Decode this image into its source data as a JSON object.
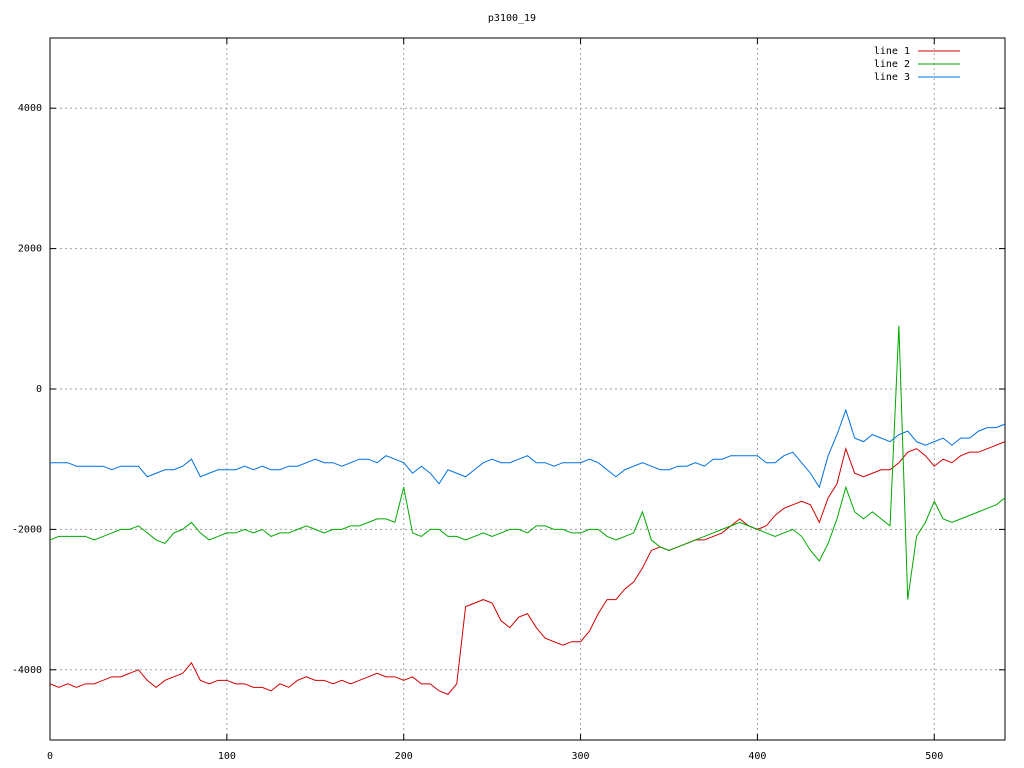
{
  "chart_data": {
    "type": "line",
    "title": "p3100_19",
    "x": [
      0,
      5,
      10,
      15,
      20,
      25,
      30,
      35,
      40,
      45,
      50,
      55,
      60,
      65,
      70,
      75,
      80,
      85,
      90,
      95,
      100,
      105,
      110,
      115,
      120,
      125,
      130,
      135,
      140,
      145,
      150,
      155,
      160,
      165,
      170,
      175,
      180,
      185,
      190,
      195,
      200,
      205,
      210,
      215,
      220,
      225,
      230,
      235,
      240,
      245,
      250,
      255,
      260,
      265,
      270,
      275,
      280,
      285,
      290,
      295,
      300,
      305,
      310,
      315,
      320,
      325,
      330,
      335,
      340,
      345,
      350,
      355,
      360,
      365,
      370,
      375,
      380,
      385,
      390,
      395,
      400,
      405,
      410,
      415,
      420,
      425,
      430,
      435,
      440,
      445,
      450,
      455,
      460,
      465,
      470,
      475,
      480,
      485,
      490,
      495,
      500,
      505,
      510,
      515,
      520,
      525,
      530,
      535,
      540
    ],
    "series": [
      {
        "name": "line 1",
        "color": "#d00000",
        "values": [
          -4200,
          -4250,
          -4200,
          -4250,
          -4200,
          -4200,
          -4150,
          -4100,
          -4100,
          -4050,
          -4000,
          -4150,
          -4250,
          -4150,
          -4100,
          -4050,
          -3900,
          -4150,
          -4200,
          -4150,
          -4150,
          -4200,
          -4200,
          -4250,
          -4250,
          -4300,
          -4200,
          -4250,
          -4150,
          -4100,
          -4150,
          -4150,
          -4200,
          -4150,
          -4200,
          -4150,
          -4100,
          -4050,
          -4100,
          -4100,
          -4150,
          -4100,
          -4200,
          -4200,
          -4300,
          -4350,
          -4200,
          -3100,
          -3050,
          -3000,
          -3050,
          -3300,
          -3400,
          -3250,
          -3200,
          -3400,
          -3550,
          -3600,
          -3650,
          -3600,
          -3600,
          -3450,
          -3200,
          -3000,
          -3000,
          -2850,
          -2750,
          -2550,
          -2300,
          -2250,
          -2300,
          -2250,
          -2200,
          -2150,
          -2150,
          -2100,
          -2050,
          -1950,
          -1850,
          -1950,
          -2000,
          -1950,
          -1800,
          -1700,
          -1650,
          -1600,
          -1650,
          -1900,
          -1550,
          -1350,
          -850,
          -1200,
          -1250,
          -1200,
          -1150,
          -1150,
          -1050,
          -900,
          -850,
          -950,
          -1100,
          -1000,
          -1050,
          -950,
          -900,
          -900,
          -850,
          -800,
          -750
        ]
      },
      {
        "name": "line 2",
        "color": "#00a800",
        "values": [
          -2150,
          -2100,
          -2100,
          -2100,
          -2100,
          -2150,
          -2100,
          -2050,
          -2000,
          -2000,
          -1950,
          -2050,
          -2150,
          -2200,
          -2050,
          -2000,
          -1900,
          -2050,
          -2150,
          -2100,
          -2050,
          -2050,
          -2000,
          -2050,
          -2000,
          -2100,
          -2050,
          -2050,
          -2000,
          -1950,
          -2000,
          -2050,
          -2000,
          -2000,
          -1950,
          -1950,
          -1900,
          -1850,
          -1850,
          -1900,
          -1400,
          -2050,
          -2100,
          -2000,
          -2000,
          -2100,
          -2100,
          -2150,
          -2100,
          -2050,
          -2100,
          -2050,
          -2000,
          -2000,
          -2050,
          -1950,
          -1950,
          -2000,
          -2000,
          -2050,
          -2050,
          -2000,
          -2000,
          -2100,
          -2150,
          -2100,
          -2050,
          -1750,
          -2150,
          -2250,
          -2300,
          -2250,
          -2200,
          -2150,
          -2100,
          -2050,
          -2000,
          -1950,
          -1900,
          -1950,
          -2000,
          -2050,
          -2100,
          -2050,
          -2000,
          -2100,
          -2300,
          -2450,
          -2200,
          -1850,
          -1400,
          -1750,
          -1850,
          -1750,
          -1850,
          -1950,
          900,
          -3000,
          -2100,
          -1900,
          -1600,
          -1850,
          -1900,
          -1850,
          -1800,
          -1750,
          -1700,
          -1650,
          -1550
        ]
      },
      {
        "name": "line 3",
        "color": "#0070e0",
        "values": [
          -1050,
          -1050,
          -1050,
          -1100,
          -1100,
          -1100,
          -1100,
          -1150,
          -1100,
          -1100,
          -1100,
          -1250,
          -1200,
          -1150,
          -1150,
          -1100,
          -1000,
          -1250,
          -1200,
          -1150,
          -1150,
          -1150,
          -1100,
          -1150,
          -1100,
          -1150,
          -1150,
          -1100,
          -1100,
          -1050,
          -1000,
          -1050,
          -1050,
          -1100,
          -1050,
          -1000,
          -1000,
          -1050,
          -950,
          -1000,
          -1050,
          -1200,
          -1100,
          -1200,
          -1350,
          -1150,
          -1200,
          -1250,
          -1150,
          -1050,
          -1000,
          -1050,
          -1050,
          -1000,
          -950,
          -1050,
          -1050,
          -1100,
          -1050,
          -1050,
          -1050,
          -1000,
          -1050,
          -1150,
          -1250,
          -1150,
          -1100,
          -1050,
          -1100,
          -1150,
          -1150,
          -1100,
          -1100,
          -1050,
          -1100,
          -1000,
          -1000,
          -950,
          -950,
          -950,
          -950,
          -1050,
          -1050,
          -950,
          -900,
          -1050,
          -1200,
          -1400,
          -950,
          -650,
          -300,
          -700,
          -750,
          -650,
          -700,
          -750,
          -650,
          -600,
          -750,
          -800,
          -750,
          -700,
          -800,
          -700,
          -700,
          -600,
          -550,
          -550,
          -500
        ]
      }
    ],
    "xlim": [
      0,
      540
    ],
    "ylim": [
      -5000,
      5000
    ],
    "xticks": [
      0,
      100,
      200,
      300,
      400,
      500
    ],
    "yticks": [
      -4000,
      -2000,
      0,
      2000,
      4000
    ],
    "grid": true,
    "legend": "top-right"
  }
}
